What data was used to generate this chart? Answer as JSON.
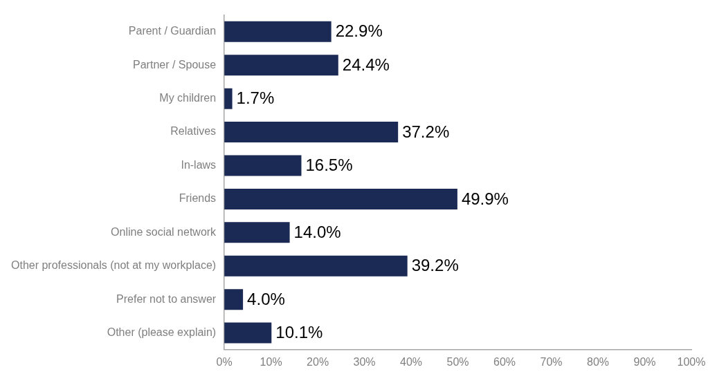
{
  "chart_data": {
    "type": "bar",
    "orientation": "horizontal",
    "categories": [
      "Parent / Guardian",
      "Partner / Spouse",
      "My children",
      "Relatives",
      "In-laws",
      "Friends",
      "Online social network",
      "Other professionals (not at my workplace)",
      "Prefer not to answer",
      "Other (please explain)"
    ],
    "values": [
      22.9,
      24.4,
      1.7,
      37.2,
      16.5,
      49.9,
      14.0,
      39.2,
      4.0,
      10.1
    ],
    "value_labels": [
      "22.9%",
      "24.4%",
      "1.7%",
      "37.2%",
      "16.5%",
      "49.9%",
      "14.0%",
      "39.2%",
      "4.0%",
      "10.1%"
    ],
    "color": "#1b2a55",
    "xlim": [
      0,
      100
    ],
    "xticks": [
      {
        "value": 0,
        "label": "0%"
      },
      {
        "value": 10,
        "label": "10%"
      },
      {
        "value": 20,
        "label": "20%"
      },
      {
        "value": 30,
        "label": "30%"
      },
      {
        "value": 40,
        "label": "40%"
      },
      {
        "value": 50,
        "label": "50%"
      },
      {
        "value": 60,
        "label": "60%"
      },
      {
        "value": 70,
        "label": "70%"
      },
      {
        "value": 80,
        "label": "80%"
      },
      {
        "value": 90,
        "label": "90%"
      },
      {
        "value": 100,
        "label": "100%"
      }
    ],
    "grid": false,
    "legend": false
  }
}
